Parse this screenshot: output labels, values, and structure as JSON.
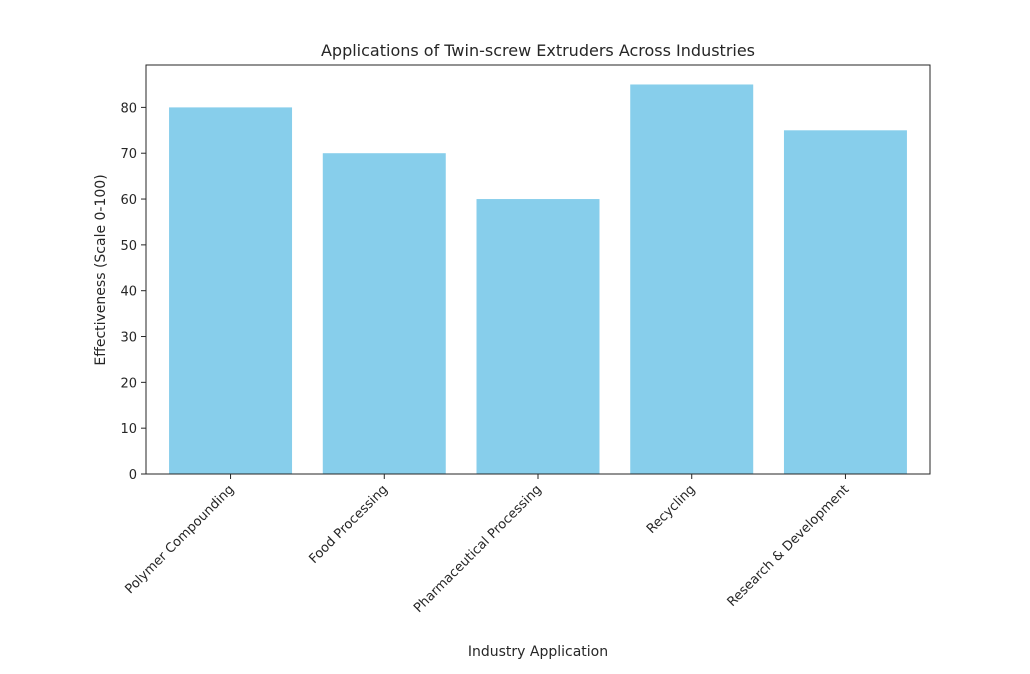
{
  "chart_data": {
    "type": "bar",
    "title": "Applications of Twin-screw Extruders Across Industries",
    "xlabel": "Industry Application",
    "ylabel": "Effectiveness (Scale 0-100)",
    "categories": [
      "Polymer Compounding",
      "Food Processing",
      "Pharmaceutical Processing",
      "Recycling",
      "Research & Development"
    ],
    "values": [
      80,
      70,
      60,
      85,
      75
    ],
    "ylim": [
      0,
      89.25
    ],
    "yticks": [
      0,
      10,
      20,
      30,
      40,
      50,
      60,
      70,
      80
    ],
    "bar_color": "#87ceeb",
    "grid": false,
    "legend": null
  }
}
